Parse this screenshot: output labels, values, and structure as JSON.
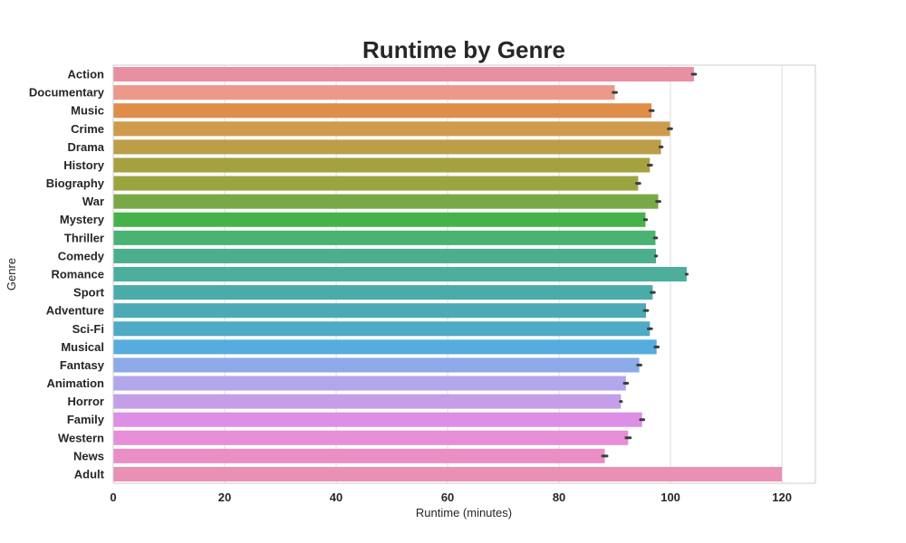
{
  "chart_data": {
    "type": "bar",
    "orientation": "horizontal",
    "title": "Runtime by Genre",
    "xlabel": "Runtime (minutes)",
    "ylabel": "Genre",
    "xlim": [
      0,
      126
    ],
    "xticks": [
      0,
      20,
      40,
      60,
      80,
      100,
      120
    ],
    "grid": true,
    "categories": [
      "Action",
      "Documentary",
      "Music",
      "Crime",
      "Drama",
      "History",
      "Biography",
      "War",
      "Mystery",
      "Thriller",
      "Comedy",
      "Romance",
      "Sport",
      "Adventure",
      "Sci-Fi",
      "Musical",
      "Fantasy",
      "Animation",
      "Horror",
      "Family",
      "Western",
      "News",
      "Adult"
    ],
    "values": [
      104.2,
      90.0,
      96.6,
      99.9,
      98.3,
      96.3,
      94.2,
      97.8,
      95.5,
      97.3,
      97.4,
      102.9,
      96.8,
      95.6,
      96.3,
      97.5,
      94.4,
      92.0,
      91.1,
      94.9,
      92.4,
      88.2,
      120.0
    ],
    "error": [
      0.3,
      0.3,
      0.3,
      0.3,
      0.2,
      0.3,
      0.3,
      0.3,
      0.2,
      0.2,
      0.1,
      0.1,
      0.3,
      0.3,
      0.3,
      0.3,
      0.3,
      0.3,
      0.1,
      0.3,
      0.4,
      0.4,
      0.0
    ],
    "colors": [
      "#e88fa2",
      "#ec998b",
      "#e08d4a",
      "#cf9b4d",
      "#bb9e46",
      "#a5a140",
      "#9aa540",
      "#79a947",
      "#47b24a",
      "#4ab273",
      "#4bae8d",
      "#4caf9b",
      "#4aaca9",
      "#4baab6",
      "#4eaac5",
      "#56acde",
      "#8ca9e8",
      "#b1a7ea",
      "#c59ee8",
      "#dd8ee5",
      "#e68fd8",
      "#e98fc6",
      "#e990b5"
    ]
  }
}
